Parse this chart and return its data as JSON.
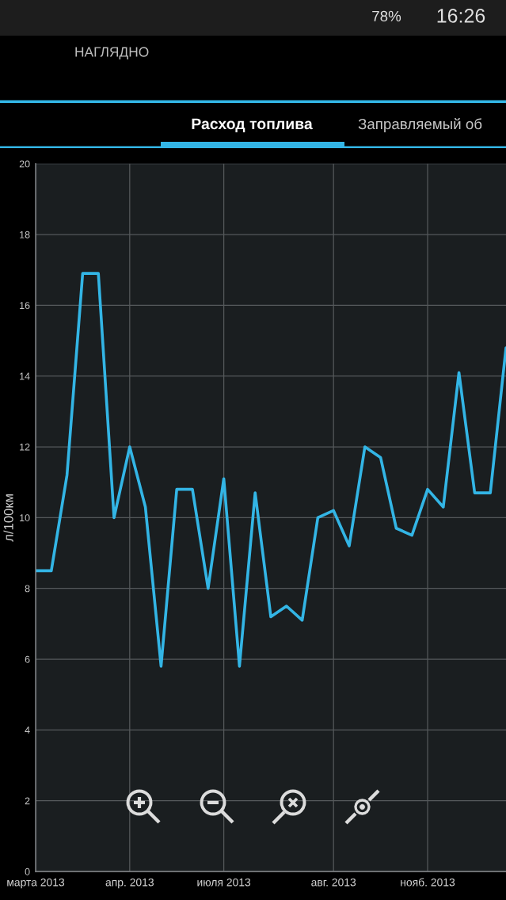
{
  "chart_data": {
    "type": "line",
    "title": "Расход топлива",
    "ylabel": "л/100км",
    "annotations": [
      "НАГЛЯДНО",
      "Заправляемый об",
      "78%",
      "16:26"
    ],
    "categories": [
      "марта 2013",
      null,
      null,
      null,
      null,
      null,
      "апр. 2013",
      null,
      null,
      null,
      null,
      null,
      "июля 2013",
      null,
      null,
      null,
      null,
      null,
      null,
      "авг. 2013",
      null,
      null,
      null,
      null,
      null,
      "нояб. 2013",
      null,
      null,
      null,
      null,
      null
    ],
    "series": [
      {
        "color": "#33b5e5",
        "values": [
          8.5,
          8.5,
          11.2,
          16.9,
          16.9,
          10.0,
          12.0,
          10.3,
          5.8,
          10.8,
          10.8,
          8.0,
          11.1,
          5.8,
          10.7,
          7.2,
          7.5,
          7.1,
          10.0,
          10.2,
          9.2,
          12.0,
          11.7,
          9.7,
          9.5,
          10.8,
          10.3,
          14.1,
          10.7,
          10.7,
          14.8
        ]
      }
    ],
    "ylim": [
      0,
      20
    ],
    "yticks": [
      0,
      2,
      4,
      6,
      8,
      10,
      12,
      14,
      16,
      18,
      20
    ],
    "grid": true,
    "line_style": "solid"
  }
}
